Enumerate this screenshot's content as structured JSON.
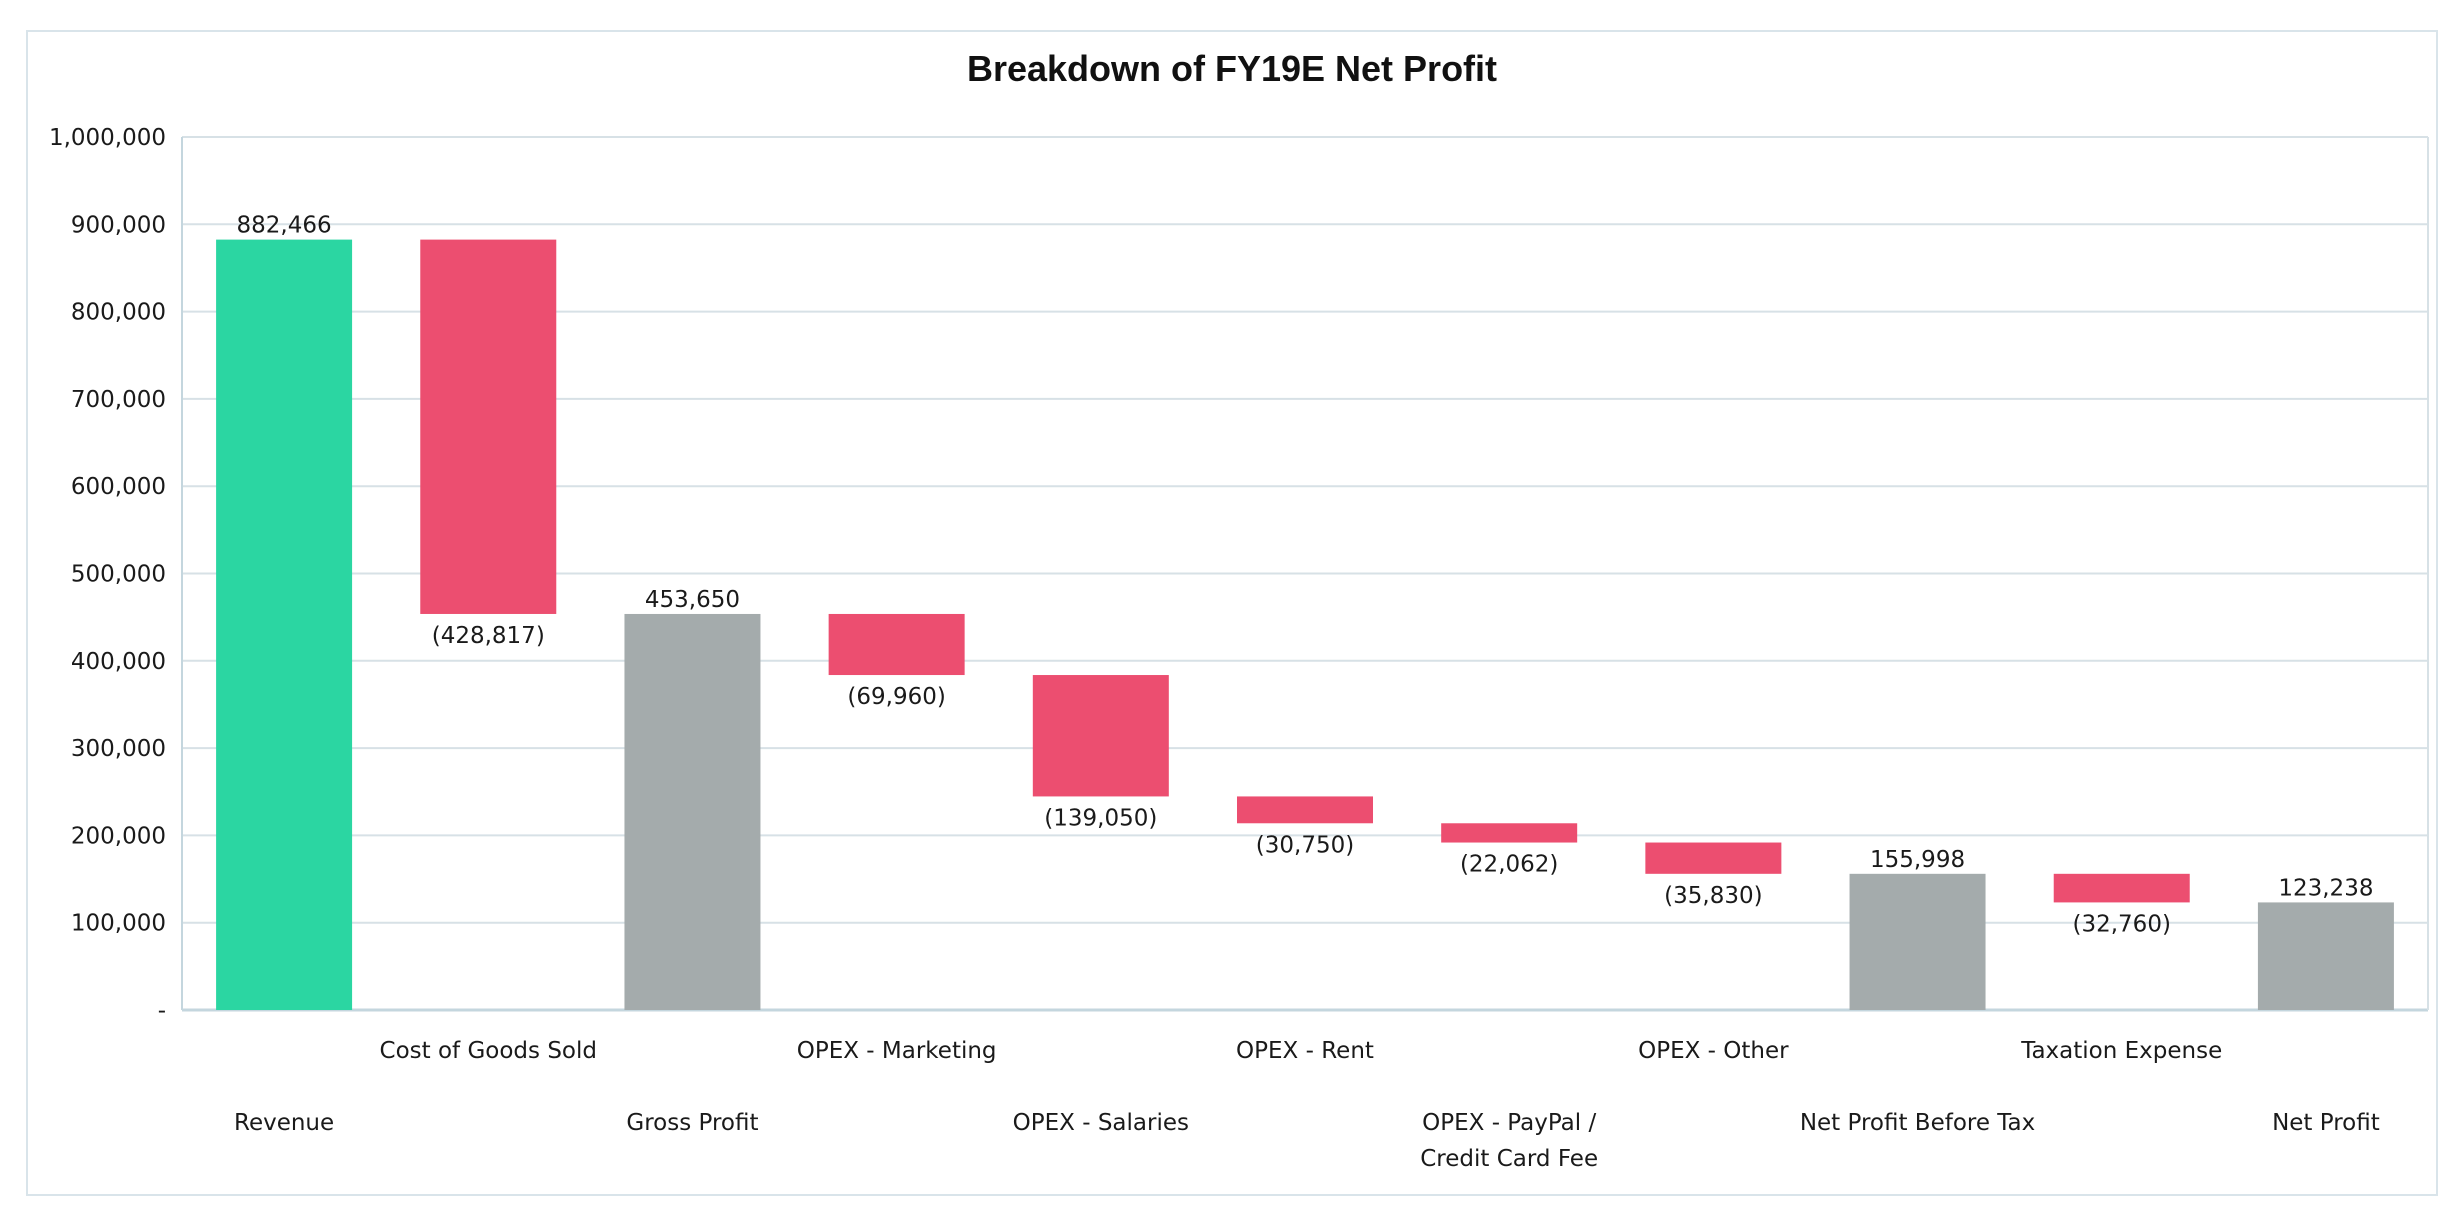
{
  "chart_data": {
    "type": "bar",
    "subtype": "waterfall",
    "title": "Breakdown of FY19E Net Profit",
    "xlabel": "",
    "ylabel": "",
    "ylim": [
      0,
      1000000
    ],
    "yticks": [
      0,
      100000,
      200000,
      300000,
      400000,
      500000,
      600000,
      700000,
      800000,
      900000,
      1000000
    ],
    "ytick_labels": [
      "-",
      "100,000",
      "200,000",
      "300,000",
      "400,000",
      "500,000",
      "600,000",
      "700,000",
      "800,000",
      "900,000",
      "1,000,000"
    ],
    "grid": true,
    "legend": "none",
    "categories": [
      {
        "label": "Revenue",
        "kind": "total",
        "value": 882466,
        "data_label": "882,466",
        "label_row": "lower"
      },
      {
        "label": "Cost of Goods Sold",
        "kind": "decrease",
        "value": -428817,
        "data_label": "(428,817)",
        "label_row": "upper"
      },
      {
        "label": "Gross Profit",
        "kind": "subtotal",
        "value": 453650,
        "data_label": "453,650",
        "label_row": "lower"
      },
      {
        "label": "OPEX - Marketing",
        "kind": "decrease",
        "value": -69960,
        "data_label": "(69,960)",
        "label_row": "upper"
      },
      {
        "label": "OPEX - Salaries",
        "kind": "decrease",
        "value": -139050,
        "data_label": "(139,050)",
        "label_row": "lower"
      },
      {
        "label": "OPEX - Rent",
        "kind": "decrease",
        "value": -30750,
        "data_label": "(30,750)",
        "label_row": "upper"
      },
      {
        "label": "OPEX - PayPal / Credit Card Fee",
        "label_lines": [
          "OPEX - PayPal /",
          "Credit Card Fee"
        ],
        "kind": "decrease",
        "value": -22062,
        "data_label": "(22,062)",
        "label_row": "lower"
      },
      {
        "label": "OPEX - Other",
        "kind": "decrease",
        "value": -35830,
        "data_label": "(35,830)",
        "label_row": "upper"
      },
      {
        "label": "Net Profit Before Tax",
        "kind": "subtotal",
        "value": 155998,
        "data_label": "155,998",
        "label_row": "lower"
      },
      {
        "label": "Taxation Expense",
        "kind": "decrease",
        "value": -32760,
        "data_label": "(32,760)",
        "label_row": "upper"
      },
      {
        "label": "Net Profit",
        "kind": "subtotal",
        "value": 123238,
        "data_label": "123,238",
        "label_row": "lower"
      }
    ],
    "colors": {
      "total": "#2bd6a2",
      "decrease": "#ec4e70",
      "subtotal": "#a4abac",
      "grid": "#d7e1e6",
      "axis": "#c4d6de"
    }
  }
}
